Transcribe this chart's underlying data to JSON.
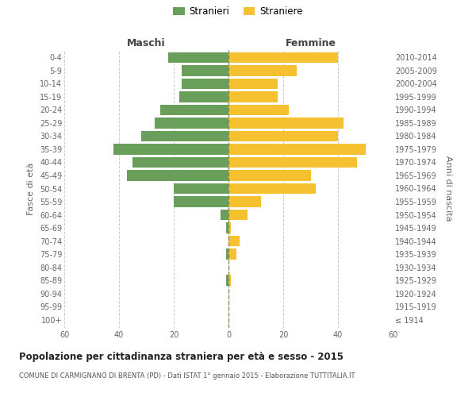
{
  "age_groups": [
    "100+",
    "95-99",
    "90-94",
    "85-89",
    "80-84",
    "75-79",
    "70-74",
    "65-69",
    "60-64",
    "55-59",
    "50-54",
    "45-49",
    "40-44",
    "35-39",
    "30-34",
    "25-29",
    "20-24",
    "15-19",
    "10-14",
    "5-9",
    "0-4"
  ],
  "birth_years": [
    "≤ 1914",
    "1915-1919",
    "1920-1924",
    "1925-1929",
    "1930-1934",
    "1935-1939",
    "1940-1944",
    "1945-1949",
    "1950-1954",
    "1955-1959",
    "1960-1964",
    "1965-1969",
    "1970-1974",
    "1975-1979",
    "1980-1984",
    "1985-1989",
    "1990-1994",
    "1995-1999",
    "2000-2004",
    "2005-2009",
    "2010-2014"
  ],
  "males": [
    0,
    0,
    0,
    1,
    0,
    1,
    0,
    1,
    3,
    20,
    20,
    37,
    35,
    42,
    32,
    27,
    25,
    18,
    17,
    17,
    22
  ],
  "females": [
    0,
    0,
    0,
    1,
    0,
    3,
    4,
    1,
    7,
    12,
    32,
    30,
    47,
    50,
    40,
    42,
    22,
    18,
    18,
    25,
    40
  ],
  "male_color": "#6a9e5b",
  "female_color": "#f5c130",
  "center_line_color": "#8a8a5a",
  "grid_color": "#cccccc",
  "bg_color": "#ffffff",
  "bar_height": 0.8,
  "xlim": 60,
  "title_main": "Popolazione per cittadinanza straniera per età e sesso - 2015",
  "title_sub": "COMUNE DI CARMIGNANO DI BRENTA (PD) - Dati ISTAT 1° gennaio 2015 - Elaborazione TUTTITALIA.IT",
  "ylabel_left": "Fasce di età",
  "ylabel_right": "Anni di nascita",
  "xlabel_left": "Maschi",
  "xlabel_right": "Femmine",
  "legend_male": "Stranieri",
  "legend_female": "Straniere"
}
